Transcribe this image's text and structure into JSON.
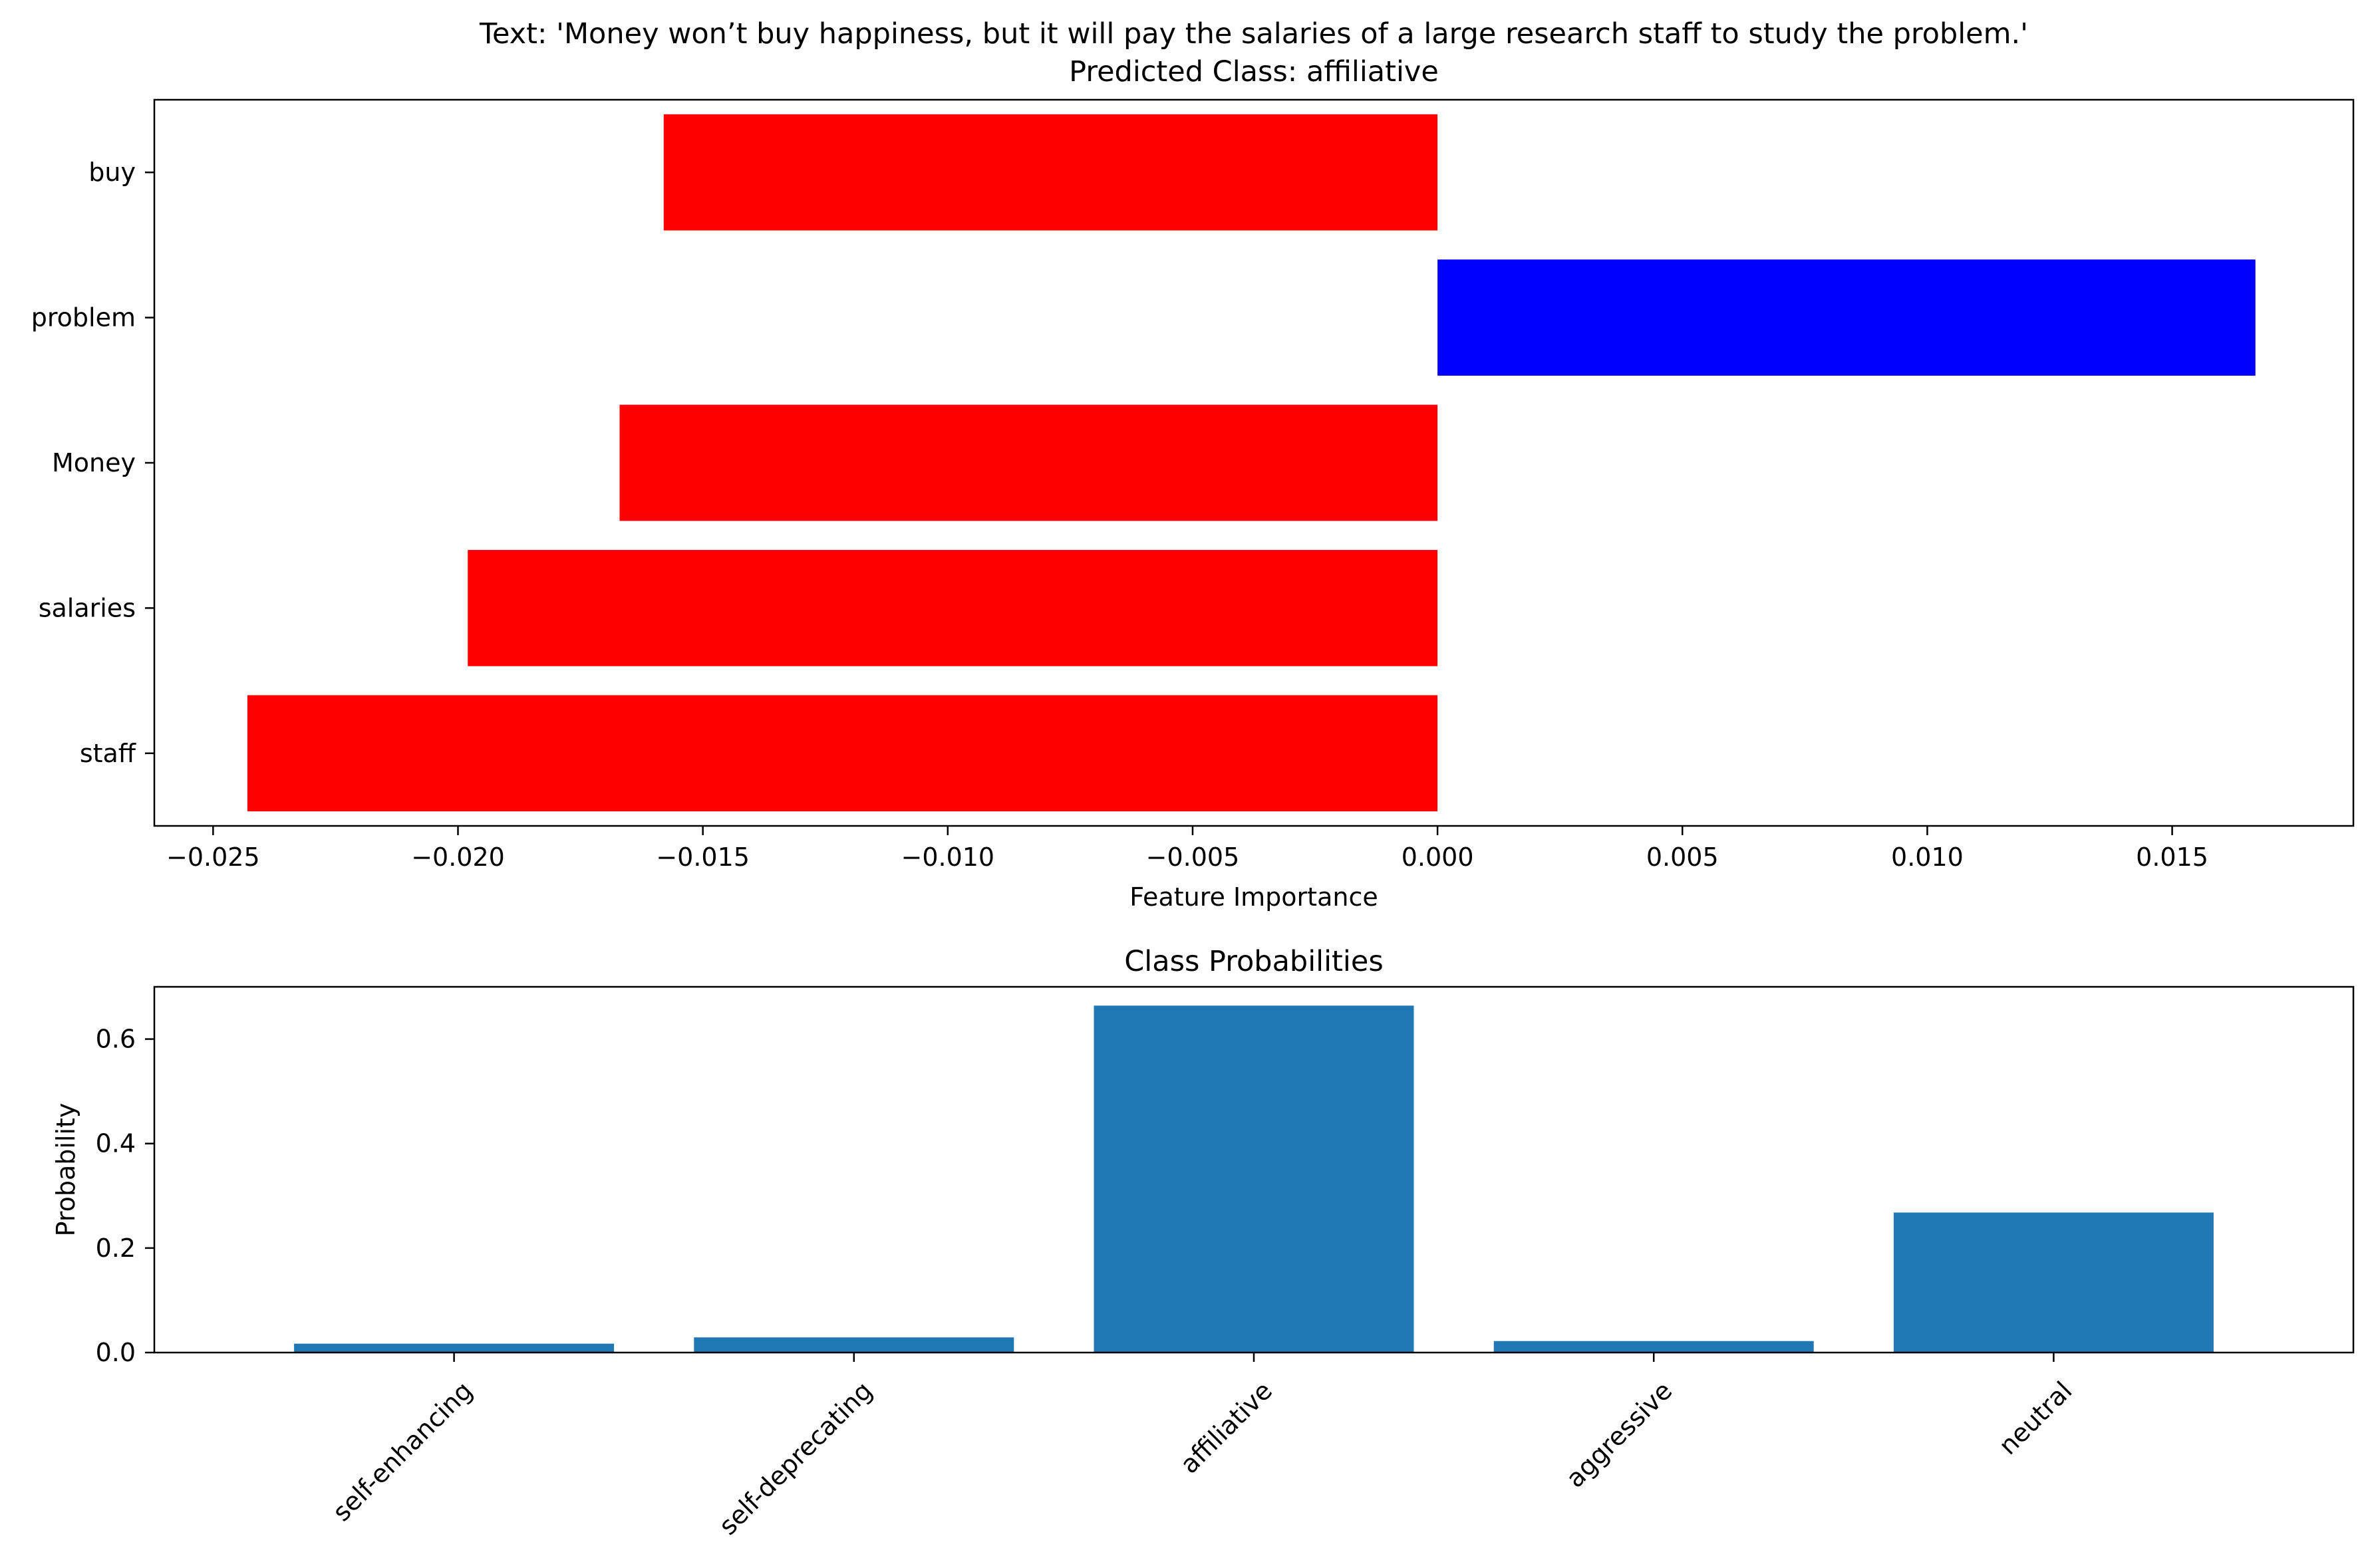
{
  "chart_data": [
    {
      "type": "bar",
      "orientation": "horizontal",
      "title": "Text: 'Money won’t buy happiness, but it will pay the salaries of a large research staff to study the problem.'",
      "subtitle": "Predicted Class: affiliative",
      "xlabel": "Feature Importance",
      "ylabel": "",
      "categories": [
        "staff",
        "salaries",
        "Money",
        "problem",
        "buy"
      ],
      "values": [
        -0.0243,
        -0.0198,
        -0.0167,
        0.0167,
        -0.0158
      ],
      "bar_colors": [
        "#ff0000",
        "#ff0000",
        "#ff0000",
        "#0000ff",
        "#ff0000"
      ],
      "xlim": [
        -0.0262,
        0.0187
      ],
      "xticks": [
        -0.025,
        -0.02,
        -0.015,
        -0.01,
        -0.005,
        0.0,
        0.005,
        0.01,
        0.015
      ],
      "xtick_labels": [
        "−0.025",
        "−0.020",
        "−0.015",
        "−0.010",
        "−0.005",
        "0.000",
        "0.005",
        "0.010",
        "0.015"
      ],
      "grid": false,
      "legend": "none"
    },
    {
      "type": "bar",
      "title": "Class Probabilities",
      "xlabel": "",
      "ylabel": "Probability",
      "categories": [
        "self-enhancing",
        "self-deprecating",
        "affiliative",
        "aggressive",
        "neutral"
      ],
      "values": [
        0.017,
        0.029,
        0.664,
        0.022,
        0.268
      ],
      "bar_color": "#1f77b4",
      "ylim": [
        0,
        0.7
      ],
      "yticks": [
        0.0,
        0.2,
        0.4,
        0.6
      ],
      "ytick_labels": [
        "0.0",
        "0.2",
        "0.4",
        "0.6"
      ],
      "xtick_rotation": 45,
      "grid": false,
      "legend": "none"
    }
  ]
}
